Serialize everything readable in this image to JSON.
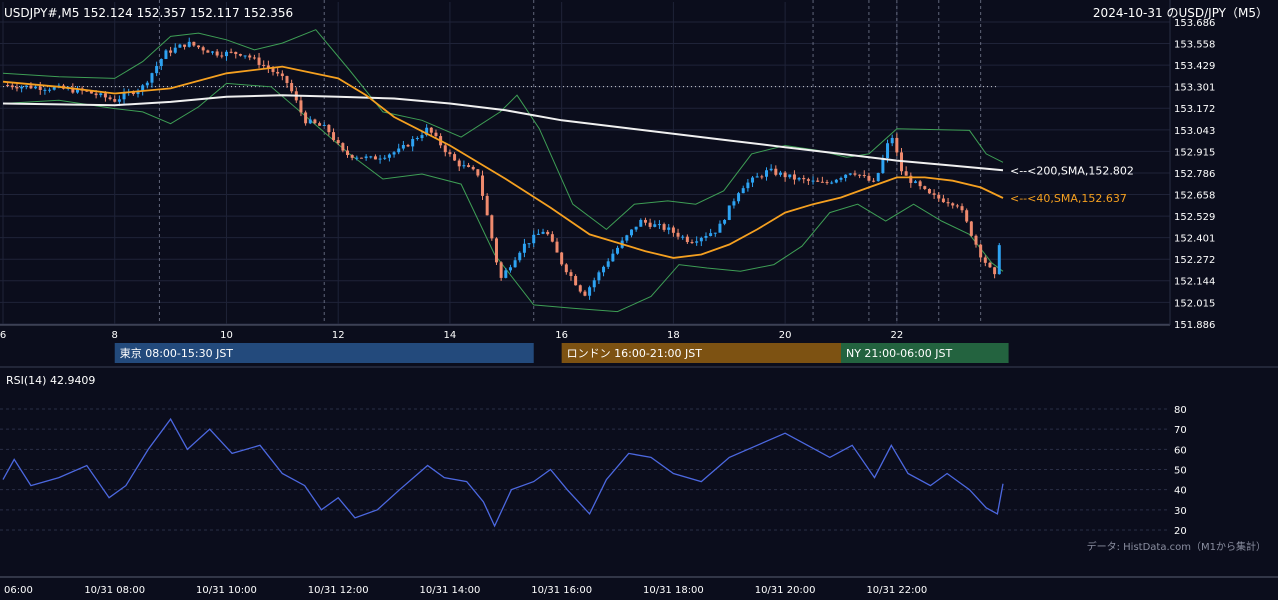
{
  "header": {
    "symbol_info": "USDJPY#,M5 152.124 152.357 152.117 152.356",
    "right_title": "2024-10-31 のUSD/JPY（M5）"
  },
  "sessions": [
    {
      "label": "東京 08:00-15:30 JST",
      "start": 8.0,
      "end": 15.5,
      "color": "#234a7c"
    },
    {
      "label": "ロンドン 16:00-21:00 JST",
      "start": 16.0,
      "end": 21.0,
      "color": "#7d5212"
    },
    {
      "label": "NY 21:00-06:00 JST",
      "start": 21.0,
      "end": 24.0,
      "color": "#23633f"
    }
  ],
  "source_note": "データ: HistData.com（M1から集計）",
  "colors": {
    "background": "#0b0d1c",
    "up": "#2ea3f2",
    "down": "#ef8a6e",
    "sma40": "#f5a020",
    "sma200": "#f0f0f0",
    "bollinger": "#3e9e55",
    "rsi": "#4c68e0"
  },
  "chart_data": [
    {
      "type": "candlestick",
      "title": "USDJPY#,M5",
      "x_ticks": [
        "6",
        "8",
        "10",
        "12",
        "14",
        "16",
        "18",
        "20",
        "22"
      ],
      "x_tick_hours": [
        6,
        8,
        10,
        12,
        14,
        16,
        18,
        20,
        22
      ],
      "x_range_hours": [
        6.0,
        23.9
      ],
      "y_ticks": [
        "153.686",
        "153.558",
        "153.429",
        "153.301",
        "153.172",
        "153.043",
        "152.915",
        "152.786",
        "152.658",
        "152.529",
        "152.401",
        "152.272",
        "152.144",
        "152.015",
        "151.886"
      ],
      "ylim": [
        151.886,
        153.686
      ],
      "reference_line": 153.301,
      "dashed_vlines_hours": [
        8.8,
        11.75,
        15.5,
        20.5,
        21.5,
        22.0,
        22.75,
        23.5
      ],
      "price_path": [
        {
          "t": 6.0,
          "v": 153.31
        },
        {
          "t": 6.5,
          "v": 153.3
        },
        {
          "t": 7.0,
          "v": 153.29
        },
        {
          "t": 7.5,
          "v": 153.27
        },
        {
          "t": 8.0,
          "v": 153.22
        },
        {
          "t": 8.5,
          "v": 153.3
        },
        {
          "t": 8.9,
          "v": 153.5
        },
        {
          "t": 9.3,
          "v": 153.56
        },
        {
          "t": 9.8,
          "v": 153.5
        },
        {
          "t": 10.3,
          "v": 153.5
        },
        {
          "t": 10.8,
          "v": 153.4
        },
        {
          "t": 11.1,
          "v": 153.32
        },
        {
          "t": 11.4,
          "v": 153.1
        },
        {
          "t": 11.8,
          "v": 153.05
        },
        {
          "t": 12.1,
          "v": 152.9
        },
        {
          "t": 12.6,
          "v": 152.87
        },
        {
          "t": 13.1,
          "v": 152.92
        },
        {
          "t": 13.6,
          "v": 153.05
        },
        {
          "t": 14.1,
          "v": 152.85
        },
        {
          "t": 14.5,
          "v": 152.78
        },
        {
          "t": 14.7,
          "v": 152.48
        },
        {
          "t": 14.9,
          "v": 152.15
        },
        {
          "t": 15.3,
          "v": 152.35
        },
        {
          "t": 15.7,
          "v": 152.45
        },
        {
          "t": 16.0,
          "v": 152.25
        },
        {
          "t": 16.4,
          "v": 152.06
        },
        {
          "t": 16.9,
          "v": 152.3
        },
        {
          "t": 17.4,
          "v": 152.5
        },
        {
          "t": 17.9,
          "v": 152.45
        },
        {
          "t": 18.3,
          "v": 152.38
        },
        {
          "t": 18.8,
          "v": 152.45
        },
        {
          "t": 19.2,
          "v": 152.7
        },
        {
          "t": 19.7,
          "v": 152.8
        },
        {
          "t": 20.2,
          "v": 152.75
        },
        {
          "t": 20.7,
          "v": 152.72
        },
        {
          "t": 21.2,
          "v": 152.8
        },
        {
          "t": 21.6,
          "v": 152.72
        },
        {
          "t": 21.9,
          "v": 153.02
        },
        {
          "t": 22.1,
          "v": 152.78
        },
        {
          "t": 22.6,
          "v": 152.65
        },
        {
          "t": 23.1,
          "v": 152.6
        },
        {
          "t": 23.5,
          "v": 152.3
        },
        {
          "t": 23.8,
          "v": 152.14
        },
        {
          "t": 23.9,
          "v": 152.356
        }
      ],
      "sma40": {
        "label": "<--<40,SMA,152.637",
        "points": [
          {
            "t": 6.0,
            "v": 153.33
          },
          {
            "t": 7.0,
            "v": 153.3
          },
          {
            "t": 8.0,
            "v": 153.26
          },
          {
            "t": 9.0,
            "v": 153.29
          },
          {
            "t": 10.0,
            "v": 153.38
          },
          {
            "t": 11.0,
            "v": 153.42
          },
          {
            "t": 12.0,
            "v": 153.35
          },
          {
            "t": 12.5,
            "v": 153.25
          },
          {
            "t": 13.0,
            "v": 153.12
          },
          {
            "t": 14.0,
            "v": 152.95
          },
          {
            "t": 15.0,
            "v": 152.75
          },
          {
            "t": 15.8,
            "v": 152.58
          },
          {
            "t": 16.5,
            "v": 152.42
          },
          {
            "t": 17.5,
            "v": 152.32
          },
          {
            "t": 18.0,
            "v": 152.28
          },
          {
            "t": 18.5,
            "v": 152.3
          },
          {
            "t": 19.0,
            "v": 152.36
          },
          {
            "t": 19.5,
            "v": 152.45
          },
          {
            "t": 20.0,
            "v": 152.55
          },
          {
            "t": 20.5,
            "v": 152.6
          },
          {
            "t": 21.0,
            "v": 152.64
          },
          {
            "t": 21.5,
            "v": 152.7
          },
          {
            "t": 22.0,
            "v": 152.76
          },
          {
            "t": 22.5,
            "v": 152.76
          },
          {
            "t": 23.0,
            "v": 152.74
          },
          {
            "t": 23.5,
            "v": 152.7
          },
          {
            "t": 23.9,
            "v": 152.637
          }
        ]
      },
      "sma200": {
        "label": "<--<200,SMA,152.802",
        "points": [
          {
            "t": 6.0,
            "v": 153.2
          },
          {
            "t": 8.0,
            "v": 153.19
          },
          {
            "t": 9.0,
            "v": 153.21
          },
          {
            "t": 10.0,
            "v": 153.24
          },
          {
            "t": 11.0,
            "v": 153.25
          },
          {
            "t": 12.0,
            "v": 153.24
          },
          {
            "t": 13.0,
            "v": 153.23
          },
          {
            "t": 14.0,
            "v": 153.2
          },
          {
            "t": 15.0,
            "v": 153.16
          },
          {
            "t": 16.0,
            "v": 153.1
          },
          {
            "t": 17.0,
            "v": 153.06
          },
          {
            "t": 18.0,
            "v": 153.02
          },
          {
            "t": 19.0,
            "v": 152.98
          },
          {
            "t": 20.0,
            "v": 152.94
          },
          {
            "t": 21.0,
            "v": 152.9
          },
          {
            "t": 22.0,
            "v": 152.86
          },
          {
            "t": 23.0,
            "v": 152.83
          },
          {
            "t": 23.9,
            "v": 152.802
          }
        ]
      },
      "bollinger_upper": [
        {
          "t": 6.0,
          "v": 153.38
        },
        {
          "t": 7.0,
          "v": 153.36
        },
        {
          "t": 8.0,
          "v": 153.35
        },
        {
          "t": 8.5,
          "v": 153.45
        },
        {
          "t": 9.0,
          "v": 153.6
        },
        {
          "t": 9.5,
          "v": 153.62
        },
        {
          "t": 10.0,
          "v": 153.58
        },
        {
          "t": 10.5,
          "v": 153.52
        },
        {
          "t": 11.0,
          "v": 153.56
        },
        {
          "t": 11.6,
          "v": 153.64
        },
        {
          "t": 12.2,
          "v": 153.4
        },
        {
          "t": 12.8,
          "v": 153.15
        },
        {
          "t": 13.5,
          "v": 153.1
        },
        {
          "t": 14.2,
          "v": 153.0
        },
        {
          "t": 14.9,
          "v": 153.15
        },
        {
          "t": 15.2,
          "v": 153.25
        },
        {
          "t": 15.6,
          "v": 153.05
        },
        {
          "t": 16.2,
          "v": 152.6
        },
        {
          "t": 16.8,
          "v": 152.45
        },
        {
          "t": 17.3,
          "v": 152.6
        },
        {
          "t": 17.9,
          "v": 152.62
        },
        {
          "t": 18.4,
          "v": 152.6
        },
        {
          "t": 18.9,
          "v": 152.68
        },
        {
          "t": 19.4,
          "v": 152.9
        },
        {
          "t": 20.0,
          "v": 152.95
        },
        {
          "t": 20.6,
          "v": 152.92
        },
        {
          "t": 21.1,
          "v": 152.88
        },
        {
          "t": 21.5,
          "v": 152.9
        },
        {
          "t": 22.0,
          "v": 153.05
        },
        {
          "t": 23.3,
          "v": 153.04
        },
        {
          "t": 23.6,
          "v": 152.9
        },
        {
          "t": 23.9,
          "v": 152.85
        }
      ],
      "bollinger_lower": [
        {
          "t": 6.0,
          "v": 153.2
        },
        {
          "t": 7.0,
          "v": 153.22
        },
        {
          "t": 8.0,
          "v": 153.17
        },
        {
          "t": 8.5,
          "v": 153.15
        },
        {
          "t": 9.0,
          "v": 153.08
        },
        {
          "t": 9.5,
          "v": 153.18
        },
        {
          "t": 10.0,
          "v": 153.32
        },
        {
          "t": 10.8,
          "v": 153.3
        },
        {
          "t": 11.5,
          "v": 153.1
        },
        {
          "t": 12.2,
          "v": 152.9
        },
        {
          "t": 12.8,
          "v": 152.75
        },
        {
          "t": 13.5,
          "v": 152.78
        },
        {
          "t": 14.2,
          "v": 152.72
        },
        {
          "t": 14.8,
          "v": 152.3
        },
        {
          "t": 15.5,
          "v": 152.0
        },
        {
          "t": 16.2,
          "v": 151.98
        },
        {
          "t": 17.0,
          "v": 151.96
        },
        {
          "t": 17.6,
          "v": 152.05
        },
        {
          "t": 18.1,
          "v": 152.24
        },
        {
          "t": 18.6,
          "v": 152.22
        },
        {
          "t": 19.2,
          "v": 152.2
        },
        {
          "t": 19.8,
          "v": 152.24
        },
        {
          "t": 20.3,
          "v": 152.35
        },
        {
          "t": 20.8,
          "v": 152.55
        },
        {
          "t": 21.3,
          "v": 152.6
        },
        {
          "t": 21.8,
          "v": 152.5
        },
        {
          "t": 22.3,
          "v": 152.6
        },
        {
          "t": 22.8,
          "v": 152.5
        },
        {
          "t": 23.3,
          "v": 152.42
        },
        {
          "t": 23.7,
          "v": 152.25
        },
        {
          "t": 23.9,
          "v": 152.2
        }
      ]
    },
    {
      "type": "line",
      "title": "RSI(14) 42.9409",
      "y_ticks": [
        "80",
        "70",
        "60",
        "50",
        "40",
        "30",
        "20"
      ],
      "ylim": [
        20,
        80
      ],
      "x_ticks": [
        "06:00",
        "10/31 08:00",
        "10/31 10:00",
        "10/31 12:00",
        "10/31 14:00",
        "10/31 16:00",
        "10/31 18:00",
        "10/31 20:00",
        "10/31 22:00"
      ],
      "x_tick_hours": [
        6,
        8,
        10,
        12,
        14,
        16,
        18,
        20,
        22
      ],
      "series": [
        {
          "values": [
            {
              "t": 6.0,
              "v": 45
            },
            {
              "t": 6.2,
              "v": 55
            },
            {
              "t": 6.5,
              "v": 42
            },
            {
              "t": 7.0,
              "v": 46
            },
            {
              "t": 7.5,
              "v": 52
            },
            {
              "t": 7.9,
              "v": 36
            },
            {
              "t": 8.2,
              "v": 42
            },
            {
              "t": 8.6,
              "v": 60
            },
            {
              "t": 9.0,
              "v": 75
            },
            {
              "t": 9.3,
              "v": 60
            },
            {
              "t": 9.7,
              "v": 70
            },
            {
              "t": 10.1,
              "v": 58
            },
            {
              "t": 10.6,
              "v": 62
            },
            {
              "t": 11.0,
              "v": 48
            },
            {
              "t": 11.4,
              "v": 42
            },
            {
              "t": 11.7,
              "v": 30
            },
            {
              "t": 12.0,
              "v": 36
            },
            {
              "t": 12.3,
              "v": 26
            },
            {
              "t": 12.7,
              "v": 30
            },
            {
              "t": 13.1,
              "v": 40
            },
            {
              "t": 13.6,
              "v": 52
            },
            {
              "t": 13.9,
              "v": 46
            },
            {
              "t": 14.3,
              "v": 44
            },
            {
              "t": 14.6,
              "v": 34
            },
            {
              "t": 14.8,
              "v": 22
            },
            {
              "t": 15.1,
              "v": 40
            },
            {
              "t": 15.5,
              "v": 44
            },
            {
              "t": 15.8,
              "v": 50
            },
            {
              "t": 16.1,
              "v": 40
            },
            {
              "t": 16.5,
              "v": 28
            },
            {
              "t": 16.8,
              "v": 45
            },
            {
              "t": 17.2,
              "v": 58
            },
            {
              "t": 17.6,
              "v": 56
            },
            {
              "t": 18.0,
              "v": 48
            },
            {
              "t": 18.5,
              "v": 44
            },
            {
              "t": 19.0,
              "v": 56
            },
            {
              "t": 19.5,
              "v": 62
            },
            {
              "t": 20.0,
              "v": 68
            },
            {
              "t": 20.4,
              "v": 62
            },
            {
              "t": 20.8,
              "v": 56
            },
            {
              "t": 21.2,
              "v": 62
            },
            {
              "t": 21.6,
              "v": 46
            },
            {
              "t": 21.9,
              "v": 62
            },
            {
              "t": 22.2,
              "v": 48
            },
            {
              "t": 22.6,
              "v": 42
            },
            {
              "t": 22.9,
              "v": 48
            },
            {
              "t": 23.3,
              "v": 40
            },
            {
              "t": 23.6,
              "v": 31
            },
            {
              "t": 23.8,
              "v": 28
            },
            {
              "t": 23.9,
              "v": 42.9409
            }
          ]
        }
      ]
    }
  ]
}
